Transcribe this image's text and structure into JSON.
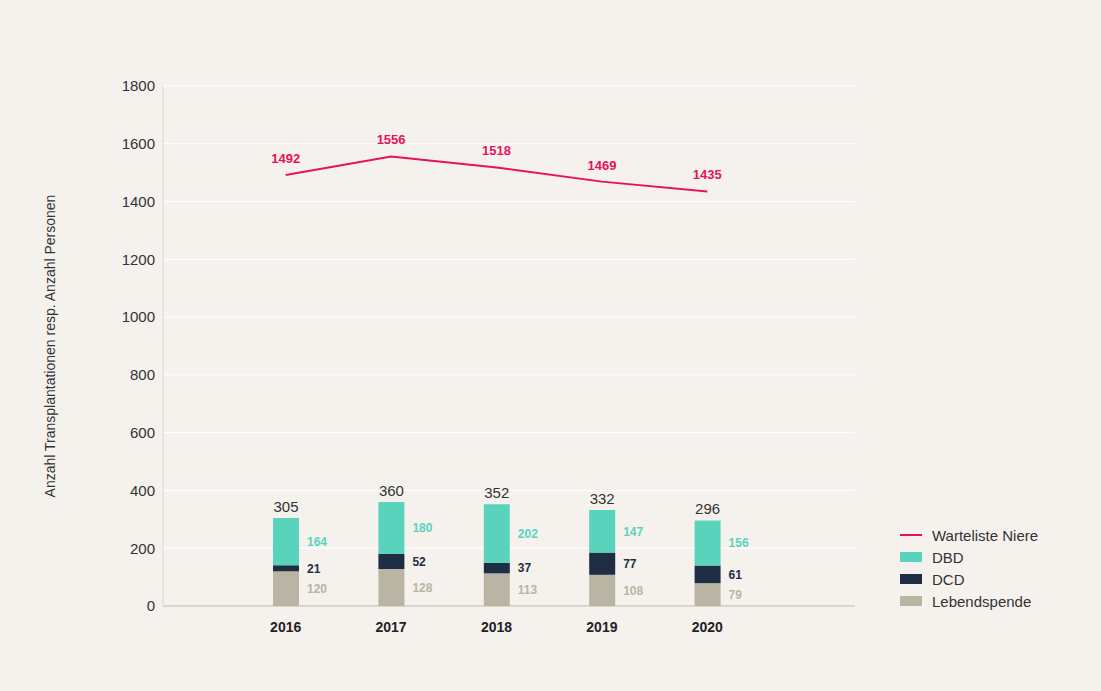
{
  "chart_data": {
    "type": "bar",
    "stacked": true,
    "categories": [
      "2016",
      "2017",
      "2018",
      "2019",
      "2020"
    ],
    "series": [
      {
        "name": "Warteliste Niere",
        "type": "line",
        "color": "#e5135a",
        "values": [
          1492,
          1556,
          1518,
          1469,
          1435
        ]
      },
      {
        "name": "DBD",
        "color": "#5ad3bd",
        "values": [
          164,
          180,
          202,
          147,
          156
        ]
      },
      {
        "name": "DCD",
        "color": "#1e2d42",
        "values": [
          21,
          52,
          37,
          77,
          61
        ]
      },
      {
        "name": "Lebendspende",
        "color": "#b9b4a3",
        "values": [
          120,
          128,
          113,
          108,
          79
        ]
      }
    ],
    "totals": [
      305,
      360,
      352,
      332,
      296
    ],
    "y_label": "Anzahl Transplantationen resp. Anzahl Personen",
    "ylim": [
      0,
      1800
    ],
    "yticks": [
      0,
      200,
      400,
      600,
      800,
      1000,
      1200,
      1400,
      1600,
      1800
    ],
    "grid": true,
    "legend": "right",
    "data_labels": true
  }
}
